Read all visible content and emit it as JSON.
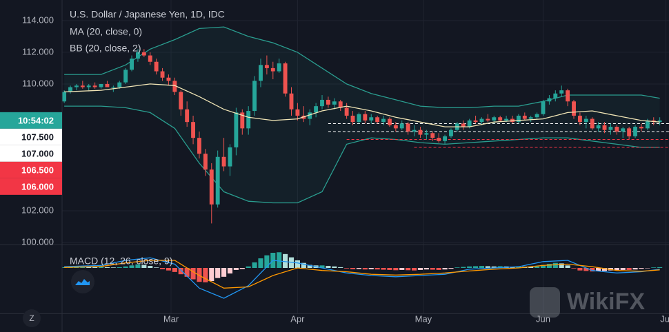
{
  "chart_data": [
    {
      "type": "candlestick",
      "title": "U.S. Dollar / Japanese Yen, 1D, IDC",
      "up_color": "#26a69a",
      "down_color": "#ef5350",
      "xlim": [
        -0.35,
        98.5
      ],
      "ylim": [
        99.87,
        115.3
      ],
      "grid": true,
      "yticks": [
        {
          "value": 100,
          "label": "100.000"
        },
        {
          "value": 102,
          "label": "102.000"
        },
        {
          "value": 110,
          "label": "110.000"
        },
        {
          "value": 112,
          "label": "112.000"
        },
        {
          "value": 114,
          "label": "114.000"
        }
      ],
      "countdown": "10:54:02",
      "countdown_color": "#26a69a",
      "candles": [
        [
          108.9,
          109.6,
          108.8,
          109.5
        ],
        [
          109.5,
          109.9,
          109.4,
          109.8
        ],
        [
          109.8,
          110.0,
          109.6,
          109.9
        ],
        [
          109.9,
          110.2,
          109.7,
          109.8
        ],
        [
          109.8,
          110.0,
          109.6,
          109.9
        ],
        [
          109.9,
          110.1,
          109.7,
          109.8
        ],
        [
          109.8,
          110.0,
          109.7,
          110.0
        ],
        [
          110.0,
          110.2,
          109.8,
          109.8
        ],
        [
          109.8,
          109.9,
          109.5,
          109.8
        ],
        [
          109.8,
          110.2,
          109.7,
          110.1
        ],
        [
          110.1,
          111.0,
          110.0,
          110.9
        ],
        [
          110.9,
          111.8,
          110.8,
          111.6
        ],
        [
          111.6,
          112.2,
          111.4,
          112.0
        ],
        [
          112.0,
          112.2,
          111.7,
          111.8
        ],
        [
          111.8,
          112.0,
          111.2,
          111.4
        ],
        [
          111.4,
          111.6,
          110.6,
          110.8
        ],
        [
          110.8,
          111.0,
          110.2,
          110.4
        ],
        [
          110.4,
          110.6,
          109.9,
          110.2
        ],
        [
          110.2,
          110.4,
          109.3,
          109.5
        ],
        [
          109.5,
          109.6,
          108.0,
          108.4
        ],
        [
          108.4,
          108.9,
          107.3,
          107.6
        ],
        [
          107.6,
          108.0,
          106.2,
          106.6
        ],
        [
          106.6,
          107.0,
          105.3,
          105.6
        ],
        [
          105.6,
          105.9,
          104.2,
          104.6
        ],
        [
          104.6,
          105.0,
          101.2,
          102.4
        ],
        [
          102.4,
          105.8,
          102.2,
          105.4
        ],
        [
          105.4,
          106.6,
          104.5,
          104.8
        ],
        [
          104.8,
          106.2,
          104.2,
          106.0
        ],
        [
          106.0,
          108.5,
          105.5,
          108.2
        ],
        [
          108.2,
          108.4,
          106.8,
          107.2
        ],
        [
          107.2,
          108.6,
          106.8,
          108.3
        ],
        [
          108.3,
          110.5,
          108.0,
          110.2
        ],
        [
          110.2,
          111.6,
          109.8,
          111.2
        ],
        [
          111.2,
          111.8,
          110.6,
          111.0
        ],
        [
          111.0,
          111.4,
          110.3,
          110.8
        ],
        [
          110.8,
          111.6,
          110.7,
          111.3
        ],
        [
          111.3,
          111.4,
          109.2,
          109.4
        ],
        [
          109.4,
          109.8,
          108.0,
          108.4
        ],
        [
          108.4,
          108.8,
          107.7,
          108.0
        ],
        [
          108.0,
          108.6,
          107.6,
          107.8
        ],
        [
          107.8,
          108.4,
          107.4,
          108.2
        ],
        [
          108.2,
          108.8,
          107.9,
          108.6
        ],
        [
          108.6,
          109.3,
          108.4,
          109.0
        ],
        [
          109.0,
          109.2,
          108.5,
          108.7
        ],
        [
          108.7,
          109.1,
          108.4,
          108.9
        ],
        [
          108.9,
          109.0,
          108.3,
          108.5
        ],
        [
          108.5,
          108.8,
          107.8,
          108.0
        ],
        [
          108.0,
          108.3,
          107.4,
          107.6
        ],
        [
          107.6,
          108.2,
          107.5,
          108.1
        ],
        [
          108.1,
          108.3,
          107.5,
          107.7
        ],
        [
          107.7,
          108.1,
          107.5,
          107.9
        ],
        [
          107.9,
          108.0,
          107.5,
          107.6
        ],
        [
          107.6,
          108.0,
          107.4,
          107.8
        ],
        [
          107.8,
          107.9,
          107.3,
          107.4
        ],
        [
          107.4,
          107.6,
          107.0,
          107.2
        ],
        [
          107.2,
          107.7,
          107.1,
          107.5
        ],
        [
          107.5,
          107.6,
          106.8,
          107.0
        ],
        [
          107.0,
          107.4,
          106.7,
          107.1
        ],
        [
          107.1,
          107.3,
          106.6,
          106.8
        ],
        [
          106.8,
          107.1,
          106.5,
          106.9
        ],
        [
          106.9,
          107.0,
          106.4,
          106.6
        ],
        [
          106.6,
          106.9,
          106.3,
          106.4
        ],
        [
          106.4,
          106.8,
          106.2,
          106.7
        ],
        [
          106.7,
          107.2,
          106.6,
          107.1
        ],
        [
          107.1,
          107.6,
          107.0,
          107.5
        ],
        [
          107.5,
          107.7,
          107.1,
          107.3
        ],
        [
          107.3,
          107.8,
          107.2,
          107.7
        ],
        [
          107.7,
          108.0,
          107.5,
          107.6
        ],
        [
          107.6,
          107.9,
          107.4,
          107.8
        ],
        [
          107.8,
          108.1,
          107.6,
          107.7
        ],
        [
          107.7,
          108.0,
          107.5,
          107.9
        ],
        [
          107.9,
          108.0,
          107.6,
          107.7
        ],
        [
          107.7,
          108.0,
          107.6,
          107.8
        ],
        [
          107.8,
          108.0,
          107.5,
          107.6
        ],
        [
          107.6,
          108.1,
          107.5,
          108.0
        ],
        [
          108.0,
          108.2,
          107.7,
          107.8
        ],
        [
          107.8,
          108.0,
          107.6,
          107.9
        ],
        [
          107.9,
          108.2,
          107.8,
          108.1
        ],
        [
          108.1,
          109.0,
          108.0,
          108.9
        ],
        [
          108.9,
          109.3,
          108.7,
          109.1
        ],
        [
          109.1,
          109.6,
          108.9,
          109.4
        ],
        [
          109.4,
          109.9,
          109.2,
          109.6
        ],
        [
          109.6,
          109.7,
          108.6,
          108.9
        ],
        [
          108.9,
          109.0,
          107.8,
          108.0
        ],
        [
          108.0,
          108.2,
          107.4,
          107.6
        ],
        [
          107.6,
          108.0,
          107.2,
          107.8
        ],
        [
          107.8,
          107.9,
          107.1,
          107.2
        ],
        [
          107.2,
          107.6,
          107.0,
          107.4
        ],
        [
          107.4,
          107.6,
          106.9,
          107.1
        ],
        [
          107.1,
          107.5,
          106.8,
          107.3
        ],
        [
          107.3,
          107.4,
          106.8,
          107.0
        ],
        [
          107.0,
          107.3,
          106.6,
          107.2
        ],
        [
          107.2,
          107.3,
          106.5,
          106.7
        ],
        [
          106.7,
          107.4,
          106.6,
          107.3
        ],
        [
          107.3,
          107.5,
          107.0,
          107.2
        ],
        [
          107.2,
          107.8,
          107.1,
          107.7
        ],
        [
          107.7,
          107.9,
          107.4,
          107.6
        ],
        [
          107.6,
          107.9,
          107.4,
          107.7
        ]
      ],
      "ma": {
        "name": "MA (20, close, 0)",
        "color": "#f3e7b7",
        "x": [
          0,
          6,
          10,
          14,
          18,
          22,
          26,
          30,
          34,
          38,
          42,
          46,
          50,
          54,
          58,
          62,
          66,
          70,
          74,
          78,
          82,
          86,
          90,
          94,
          97
        ],
        "values": [
          109.5,
          109.6,
          109.8,
          110.0,
          109.9,
          109.2,
          108.4,
          107.9,
          107.7,
          107.8,
          108.3,
          108.6,
          108.3,
          107.9,
          107.6,
          107.3,
          107.3,
          107.6,
          107.7,
          107.8,
          108.2,
          108.3,
          108.0,
          107.7,
          107.6
        ]
      },
      "bb": {
        "name": "BB (20, close, 2)",
        "color": "#2a9d8f",
        "x": [
          0,
          6,
          10,
          14,
          18,
          22,
          26,
          30,
          34,
          38,
          42,
          46,
          50,
          54,
          58,
          62,
          66,
          70,
          74,
          78,
          82,
          86,
          90,
          94,
          97
        ],
        "upper": [
          110.6,
          110.6,
          111.2,
          112.2,
          112.8,
          113.5,
          113.6,
          113.0,
          112.6,
          112.0,
          111.0,
          110.0,
          109.4,
          109.0,
          108.6,
          108.5,
          108.5,
          108.6,
          108.6,
          108.9,
          109.3,
          109.3,
          109.3,
          109.3,
          109.1
        ],
        "lower": [
          108.6,
          108.6,
          108.5,
          108.2,
          107.2,
          105.0,
          103.2,
          102.6,
          102.5,
          102.5,
          103.2,
          106.2,
          106.6,
          106.5,
          106.3,
          106.2,
          106.3,
          106.4,
          106.5,
          106.6,
          106.6,
          106.4,
          106.2,
          106.0,
          106.0
        ]
      },
      "price_lines": [
        {
          "value": 107.5,
          "label": "107.500",
          "color": "#ffffff",
          "from": 43
        },
        {
          "value": 107.0,
          "label": "107.000",
          "color": "#ffffff",
          "from": 43
        },
        {
          "value": 106.5,
          "label": "106.500",
          "color": "#f23645",
          "from": 46
        },
        {
          "value": 106.0,
          "label": "106.000",
          "color": "#f23645",
          "from": 57
        }
      ]
    },
    {
      "type": "macd",
      "title": "MACD (12, 26, close, 9)",
      "xlim": [
        -0.35,
        98.5
      ],
      "ylim": [
        -1.8,
        0.9
      ],
      "xticks": [
        {
          "value": 17.4,
          "label": "Mar"
        },
        {
          "value": 38,
          "label": "Apr"
        },
        {
          "value": 58.5,
          "label": "May"
        },
        {
          "value": 78,
          "label": "Jun"
        },
        {
          "value": 98,
          "label": "Jul"
        }
      ],
      "histogram": {
        "colors": [
          "#26a69a",
          "#b2dfdb",
          "#ffcdd2",
          "#ef5350"
        ],
        "values": [
          0.03,
          0.04,
          0.05,
          0.05,
          0.04,
          0.03,
          0.04,
          0.03,
          0.02,
          0.03,
          0.06,
          0.1,
          0.14,
          0.12,
          0.08,
          0.02,
          -0.05,
          -0.1,
          -0.16,
          -0.25,
          -0.35,
          -0.45,
          -0.55,
          -0.57,
          -0.52,
          -0.4,
          -0.35,
          -0.22,
          -0.08,
          -0.04,
          0.06,
          0.22,
          0.38,
          0.5,
          0.6,
          0.62,
          0.55,
          0.42,
          0.3,
          0.2,
          0.12,
          0.1,
          0.1,
          0.08,
          0.06,
          0.03,
          -0.02,
          -0.05,
          -0.04,
          -0.06,
          -0.05,
          -0.06,
          -0.07,
          -0.08,
          -0.09,
          -0.08,
          -0.09,
          -0.1,
          -0.08,
          -0.06,
          -0.07,
          -0.08,
          -0.06,
          -0.03,
          0.02,
          0.04,
          0.06,
          0.07,
          0.08,
          0.07,
          0.06,
          0.07,
          0.06,
          0.05,
          0.06,
          0.05,
          0.04,
          0.06,
          0.12,
          0.16,
          0.2,
          0.18,
          0.1,
          -0.02,
          -0.1,
          -0.12,
          -0.14,
          -0.13,
          -0.12,
          -0.1,
          -0.09,
          -0.08,
          -0.08,
          -0.06,
          -0.03,
          -0.01,
          0.02,
          0.03
        ]
      },
      "macd": {
        "color": "#2196f3",
        "x": [
          0,
          6,
          10,
          14,
          18,
          22,
          26,
          30,
          34,
          38,
          42,
          46,
          50,
          54,
          58,
          62,
          66,
          70,
          74,
          78,
          82,
          86,
          90,
          94,
          97
        ],
        "values": [
          0.05,
          0.1,
          0.3,
          0.4,
          0.15,
          -0.8,
          -1.2,
          -0.7,
          0.3,
          0.2,
          0.0,
          -0.2,
          -0.3,
          -0.35,
          -0.3,
          -0.25,
          -0.05,
          0.0,
          0.05,
          0.25,
          0.3,
          -0.1,
          -0.2,
          -0.15,
          -0.05
        ]
      },
      "signal": {
        "color": "#ff9800",
        "x": [
          0,
          6,
          10,
          14,
          18,
          22,
          26,
          30,
          34,
          38,
          42,
          46,
          50,
          54,
          58,
          62,
          66,
          70,
          74,
          78,
          82,
          86,
          90,
          94,
          97
        ],
        "values": [
          0.02,
          0.06,
          0.2,
          0.3,
          0.3,
          -0.3,
          -0.8,
          -0.75,
          -0.3,
          0.0,
          -0.1,
          -0.15,
          -0.25,
          -0.28,
          -0.25,
          -0.2,
          -0.12,
          -0.05,
          0.0,
          0.1,
          0.15,
          0.05,
          -0.1,
          -0.13,
          -0.08
        ]
      }
    }
  ],
  "ui": {
    "zoom_button": "Z",
    "watermark": "WikiFX"
  }
}
